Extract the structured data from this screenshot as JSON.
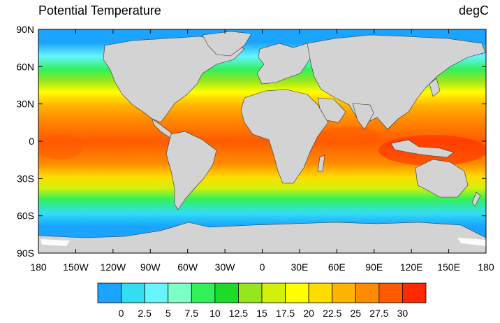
{
  "title": "Potential Temperature",
  "units": "degC",
  "map": {
    "projection": "cylindrical-equidistant",
    "lon_range": [
      -180,
      180
    ],
    "lat_range": [
      -90,
      90
    ],
    "land_color": "#d3d3d3",
    "lat_labels": [
      "90N",
      "60N",
      "30N",
      "0",
      "30S",
      "60S",
      "90S"
    ],
    "lon_labels": [
      "180",
      "150W",
      "120W",
      "90W",
      "60W",
      "30W",
      "0",
      "30E",
      "60E",
      "90E",
      "120E",
      "150E",
      "180"
    ]
  },
  "colorbar": {
    "colors": [
      "#1aa3ff",
      "#33ddf2",
      "#66f5ff",
      "#7dffc8",
      "#32f05a",
      "#1cdc28",
      "#96e61e",
      "#d2f00a",
      "#ffff00",
      "#ffdc00",
      "#ffb400",
      "#ff8c00",
      "#ff5a00",
      "#ff2800"
    ],
    "labels": [
      "0",
      "2.5",
      "5",
      "7.5",
      "10",
      "12.5",
      "15",
      "17.5",
      "20",
      "22.5",
      "25",
      "27.5",
      "30"
    ]
  }
}
